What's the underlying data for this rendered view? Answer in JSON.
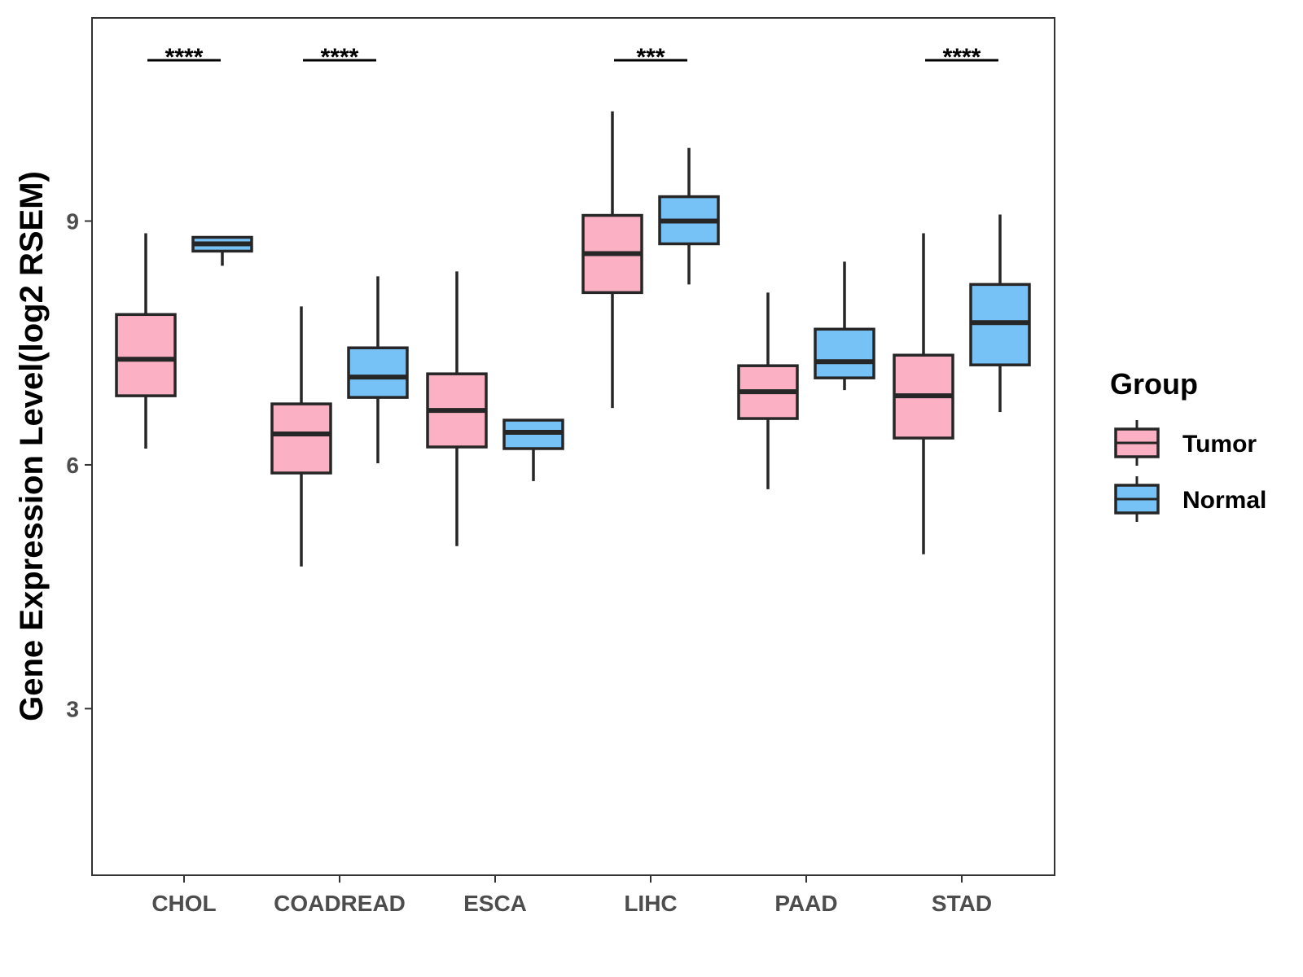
{
  "chart_data": {
    "type": "boxplot",
    "ylabel": "Gene Expression Level(log2 RSEM)",
    "xlabel": "",
    "ylim": [
      0.95,
      11.5
    ],
    "yticks": [
      3,
      6,
      9
    ],
    "categories": [
      "CHOL",
      "COADREAD",
      "ESCA",
      "LIHC",
      "PAAD",
      "STAD"
    ],
    "groups": [
      "Tumor",
      "Normal"
    ],
    "colors": {
      "Tumor": "#fbb0c3",
      "Normal": "#76c1f5",
      "outline": "#262626"
    },
    "series": [
      {
        "name": "Tumor",
        "boxes": [
          {
            "min": 6.2,
            "q1": 6.85,
            "median": 7.3,
            "q3": 7.85,
            "max": 8.85
          },
          {
            "min": 4.75,
            "q1": 5.9,
            "median": 6.38,
            "q3": 6.75,
            "max": 7.95
          },
          {
            "min": 5.0,
            "q1": 6.22,
            "median": 6.67,
            "q3": 7.12,
            "max": 8.38
          },
          {
            "min": 6.7,
            "q1": 8.12,
            "median": 8.6,
            "q3": 9.07,
            "max": 10.35
          },
          {
            "min": 5.7,
            "q1": 6.57,
            "median": 6.9,
            "q3": 7.22,
            "max": 8.12
          },
          {
            "min": 4.9,
            "q1": 6.33,
            "median": 6.85,
            "q3": 7.35,
            "max": 8.85
          }
        ]
      },
      {
        "name": "Normal",
        "boxes": [
          {
            "min": 8.45,
            "q1": 8.63,
            "median": 8.72,
            "q3": 8.8,
            "max": 8.8
          },
          {
            "min": 6.02,
            "q1": 6.83,
            "median": 7.08,
            "q3": 7.44,
            "max": 8.32
          },
          {
            "min": 5.8,
            "q1": 6.2,
            "median": 6.4,
            "q3": 6.55,
            "max": 6.55
          },
          {
            "min": 8.22,
            "q1": 8.72,
            "median": 9.0,
            "q3": 9.3,
            "max": 9.9
          },
          {
            "min": 6.92,
            "q1": 7.07,
            "median": 7.27,
            "q3": 7.67,
            "max": 8.5
          },
          {
            "min": 6.65,
            "q1": 7.23,
            "median": 7.75,
            "q3": 8.22,
            "max": 9.08
          }
        ]
      }
    ],
    "significance": [
      {
        "category": "CHOL",
        "label": "****"
      },
      {
        "category": "COADREAD",
        "label": "****"
      },
      {
        "category": "LIHC",
        "label": "***"
      },
      {
        "category": "STAD",
        "label": "****"
      }
    ],
    "legend": {
      "title": "Group",
      "items": [
        "Tumor",
        "Normal"
      ],
      "placement": "right"
    }
  }
}
